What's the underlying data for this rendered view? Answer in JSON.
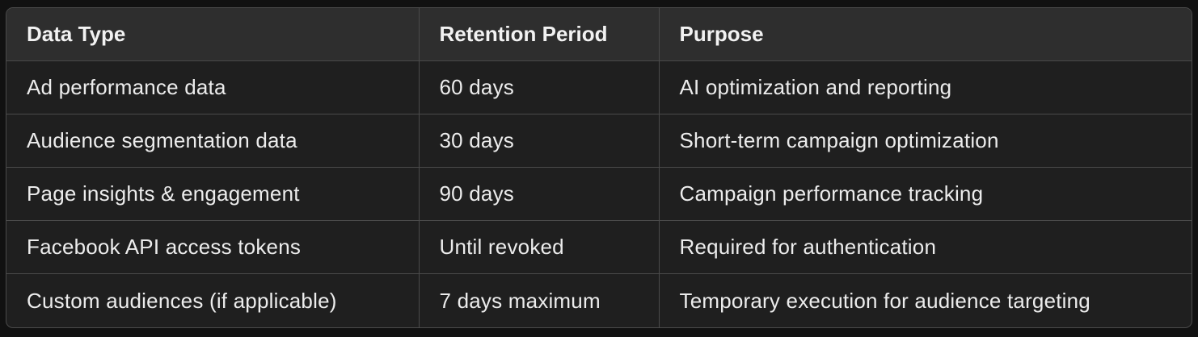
{
  "table": {
    "headers": [
      "Data Type",
      "Retention Period",
      "Purpose"
    ],
    "rows": [
      [
        "Ad performance data",
        "60 days",
        "AI optimization and reporting"
      ],
      [
        "Audience segmentation data",
        "30 days",
        "Short-term campaign optimization"
      ],
      [
        "Page insights & engagement",
        "90 days",
        "Campaign performance tracking"
      ],
      [
        "Facebook API access tokens",
        "Until revoked",
        "Required for authentication"
      ],
      [
        "Custom audiences (if applicable)",
        "7 days maximum",
        "Temporary execution for audience targeting"
      ]
    ]
  }
}
